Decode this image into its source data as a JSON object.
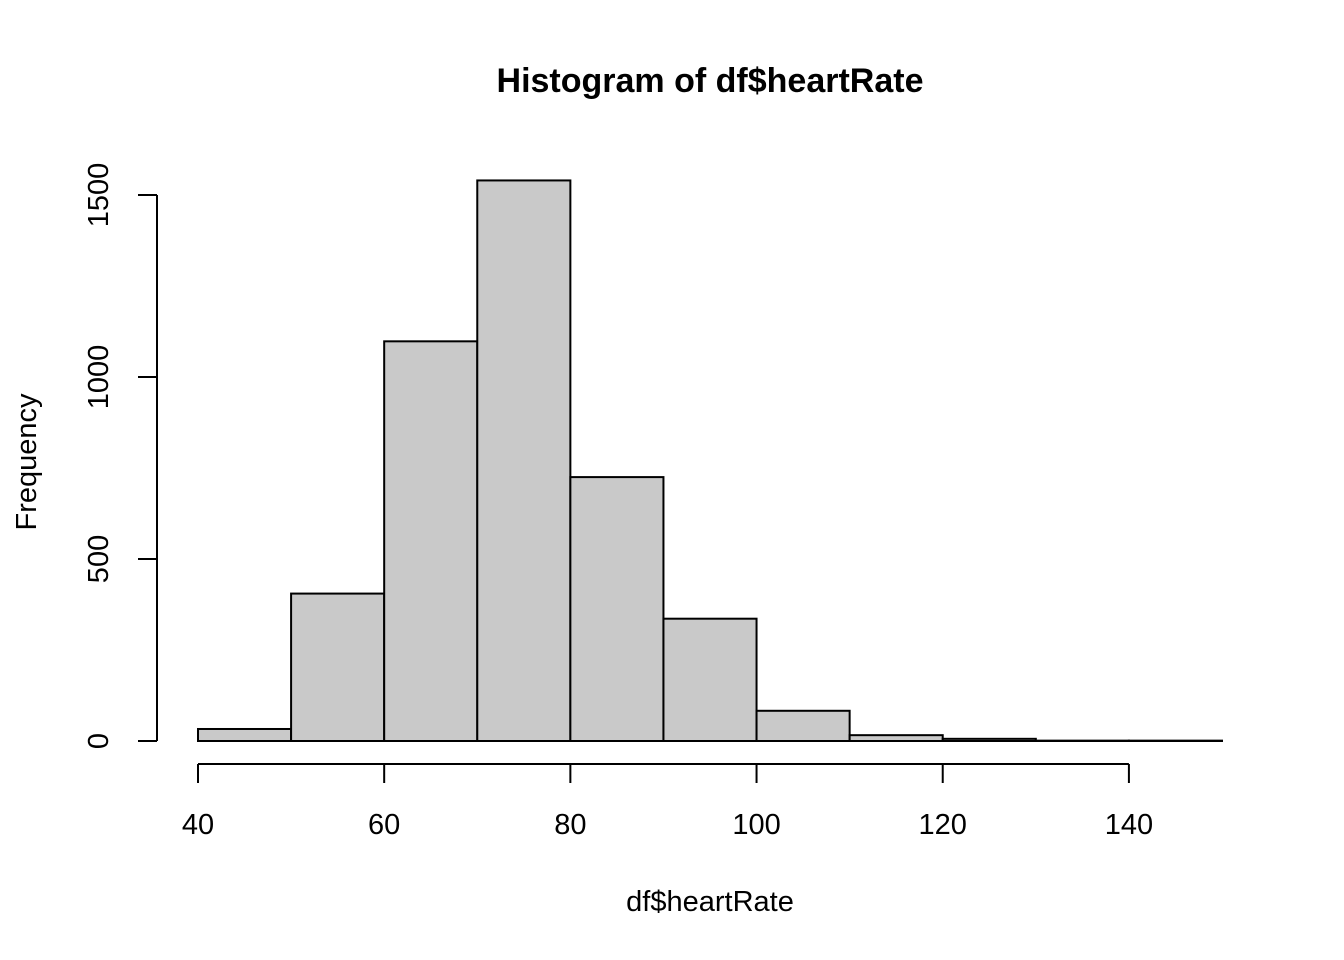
{
  "chart_data": {
    "type": "bar",
    "title": "Histogram of df$heartRate",
    "xlabel": "df$heartRate",
    "ylabel": "Frequency",
    "bins": [
      {
        "from": 40,
        "to": 50,
        "count": 33
      },
      {
        "from": 50,
        "to": 60,
        "count": 405
      },
      {
        "from": 60,
        "to": 70,
        "count": 1098
      },
      {
        "from": 70,
        "to": 80,
        "count": 1540
      },
      {
        "from": 80,
        "to": 90,
        "count": 725
      },
      {
        "from": 90,
        "to": 100,
        "count": 336
      },
      {
        "from": 100,
        "to": 110,
        "count": 83
      },
      {
        "from": 110,
        "to": 120,
        "count": 16
      },
      {
        "from": 120,
        "to": 130,
        "count": 6
      },
      {
        "from": 130,
        "to": 140,
        "count": 1
      },
      {
        "from": 140,
        "to": 150,
        "count": 1
      }
    ],
    "xlim": [
      40,
      150
    ],
    "ylim": [
      0,
      1540
    ],
    "x_ticks": [
      "40",
      "60",
      "80",
      "100",
      "120",
      "140"
    ],
    "y_ticks": [
      "0",
      "500",
      "1000",
      "1500"
    ],
    "bar_color": "#c9c9c9",
    "grid": false,
    "legend": "none"
  }
}
